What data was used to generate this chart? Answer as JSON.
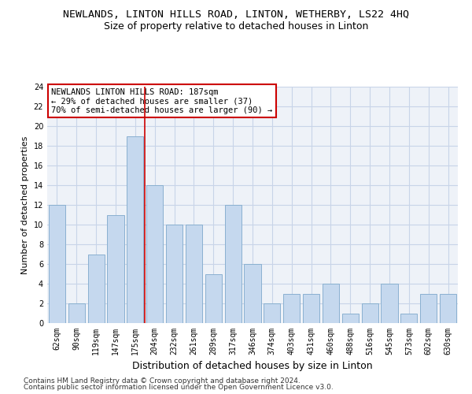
{
  "title": "NEWLANDS, LINTON HILLS ROAD, LINTON, WETHERBY, LS22 4HQ",
  "subtitle": "Size of property relative to detached houses in Linton",
  "xlabel": "Distribution of detached houses by size in Linton",
  "ylabel": "Number of detached properties",
  "categories": [
    "62sqm",
    "90sqm",
    "119sqm",
    "147sqm",
    "175sqm",
    "204sqm",
    "232sqm",
    "261sqm",
    "289sqm",
    "317sqm",
    "346sqm",
    "374sqm",
    "403sqm",
    "431sqm",
    "460sqm",
    "488sqm",
    "516sqm",
    "545sqm",
    "573sqm",
    "602sqm",
    "630sqm"
  ],
  "values": [
    12,
    2,
    7,
    11,
    19,
    14,
    10,
    10,
    5,
    12,
    6,
    2,
    3,
    3,
    4,
    1,
    2,
    4,
    1,
    3,
    3
  ],
  "bar_color": "#c5d8ee",
  "bar_edge_color": "#8ab0d0",
  "grid_color": "#c8d4e8",
  "background_color": "#eef2f8",
  "vline_x": 4.5,
  "vline_color": "#cc0000",
  "annotation_text": "NEWLANDS LINTON HILLS ROAD: 187sqm\n← 29% of detached houses are smaller (37)\n70% of semi-detached houses are larger (90) →",
  "annotation_box_color": "#ffffff",
  "annotation_box_edge": "#cc0000",
  "ylim": [
    0,
    24
  ],
  "yticks": [
    0,
    2,
    4,
    6,
    8,
    10,
    12,
    14,
    16,
    18,
    20,
    22,
    24
  ],
  "footer_line1": "Contains HM Land Registry data © Crown copyright and database right 2024.",
  "footer_line2": "Contains public sector information licensed under the Open Government Licence v3.0.",
  "title_fontsize": 9.5,
  "subtitle_fontsize": 9,
  "xlabel_fontsize": 9,
  "ylabel_fontsize": 8,
  "tick_fontsize": 7,
  "annotation_fontsize": 7.5,
  "footer_fontsize": 6.5
}
